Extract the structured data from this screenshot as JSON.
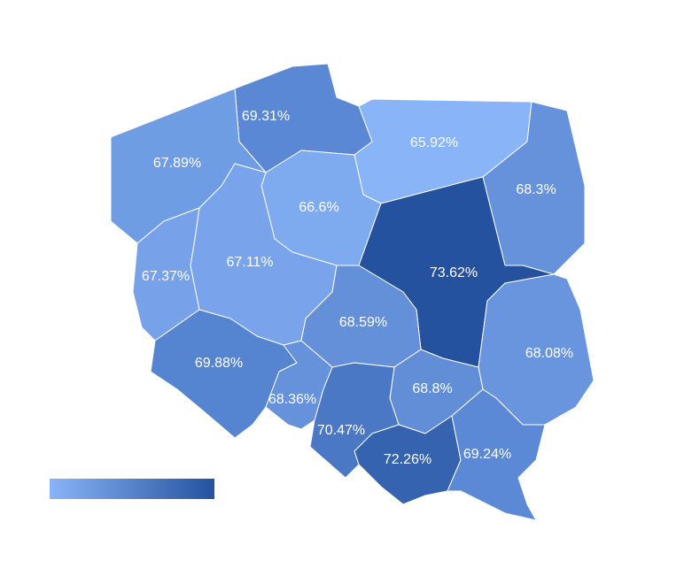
{
  "regions": [
    {
      "label": "69.31%",
      "color": "#5a88d4"
    },
    {
      "label": "67.89%",
      "color": "#6f9de4"
    },
    {
      "label": "65.92%",
      "color": "#8ab4f8"
    },
    {
      "label": "68.3%",
      "color": "#6692dc"
    },
    {
      "label": "66.6%",
      "color": "#7eaaf0"
    },
    {
      "label": "67.37%",
      "color": "#77a2ea"
    },
    {
      "label": "67.11%",
      "color": "#79a4ec"
    },
    {
      "label": "73.62%",
      "color": "#24529e"
    },
    {
      "label": "68.59%",
      "color": "#6490da"
    },
    {
      "label": "69.88%",
      "color": "#5584d0"
    },
    {
      "label": "68.08%",
      "color": "#6995de"
    },
    {
      "label": "68.36%",
      "color": "#6692dc"
    },
    {
      "label": "68.8%",
      "color": "#628ed8"
    },
    {
      "label": "70.47%",
      "color": "#4a78c4"
    },
    {
      "label": "72.26%",
      "color": "#3563b0"
    },
    {
      "label": "69.24%",
      "color": "#5b89d5"
    }
  ],
  "legend": {
    "colors": [
      "#8ab4f8",
      "#24529e"
    ]
  }
}
